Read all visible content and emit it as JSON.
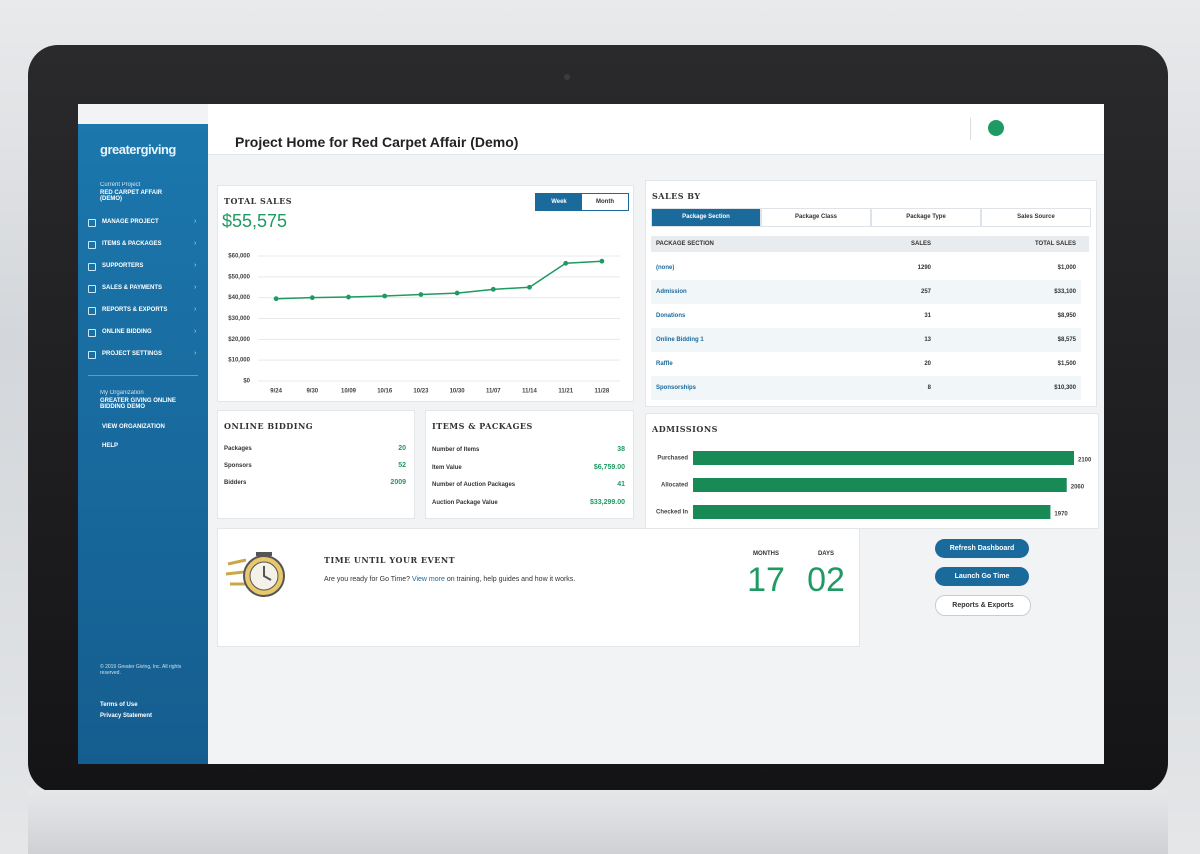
{
  "app": {
    "logo": "greatergiving",
    "title": "Project Home for Red Carpet Affair (Demo)"
  },
  "sidebar": {
    "current_label": "Current Project",
    "current_project": "RED CARPET AFFAIR (DEMO)",
    "menu": [
      "MANAGE PROJECT",
      "ITEMS & PACKAGES",
      "SUPPORTERS",
      "SALES & PAYMENTS",
      "REPORTS & EXPORTS",
      "ONLINE BIDDING",
      "PROJECT SETTINGS"
    ],
    "org_label": "My Organization",
    "org_name": "GREATER GIVING ONLINE BIDDING DEMO",
    "org_menu": [
      "VIEW ORGANIZATION",
      "HELP"
    ],
    "footer": "© 2019 Greater Giving, Inc. All rights reserved.",
    "links": [
      "Terms of Use",
      "Privacy Statement"
    ]
  },
  "total_sales": {
    "title": "TOTAL SALES",
    "amount": "$55,575",
    "toggle": [
      "Week",
      "Month"
    ]
  },
  "chart_data": [
    {
      "type": "line",
      "categories": [
        "9/24",
        "9/30",
        "10/09",
        "10/16",
        "10/23",
        "10/30",
        "11/07",
        "11/14",
        "11/21",
        "11/28"
      ],
      "values": [
        39500,
        40000,
        40300,
        40800,
        41500,
        42200,
        44000,
        45000,
        56500,
        57500
      ],
      "color": "#1f9a62",
      "ylim": [
        0,
        60000
      ],
      "yticks": [
        {
          "value": 0,
          "label": "$0"
        },
        {
          "value": 10000,
          "label": "$10,000"
        },
        {
          "value": 20000,
          "label": "$20,000"
        },
        {
          "value": 30000,
          "label": "$30,000"
        },
        {
          "value": 40000,
          "label": "$40,000"
        },
        {
          "value": 50000,
          "label": "$50,000"
        },
        {
          "value": 60000,
          "label": "$60,000"
        }
      ],
      "grid": true
    },
    {
      "type": "hbar",
      "title": "ADMISSIONS",
      "categories": [
        "Purchased",
        "Allocated",
        "Checked In"
      ],
      "values": [
        2100,
        2060,
        1970
      ],
      "color": "#178a55",
      "xlim": [
        0,
        2100
      ]
    }
  ],
  "sales_by": {
    "title": "SALES BY",
    "tabs": [
      "Package Section",
      "Package Class",
      "Package Type",
      "Sales Source"
    ],
    "headers": [
      "PACKAGE SECTION",
      "SALES",
      "TOTAL SALES"
    ],
    "rows": [
      [
        "(none)",
        "1290",
        "$1,000"
      ],
      [
        "Admission",
        "257",
        "$33,100"
      ],
      [
        "Donations",
        "31",
        "$8,950"
      ],
      [
        "Online Bidding 1",
        "13",
        "$8,575"
      ],
      [
        "Raffle",
        "20",
        "$1,500"
      ],
      [
        "Sponsorships",
        "8",
        "$10,300"
      ]
    ]
  },
  "online_bidding": {
    "title": "ONLINE BIDDING",
    "rows": [
      [
        "Packages",
        "20"
      ],
      [
        "Sponsors",
        "52"
      ],
      [
        "Bidders",
        "2009"
      ]
    ]
  },
  "items_packages": {
    "title": "ITEMS & PACKAGES",
    "rows": [
      [
        "Number of Items",
        "38"
      ],
      [
        "Item Value",
        "$6,759.00"
      ],
      [
        "Number of Auction Packages",
        "41"
      ],
      [
        "Auction Package Value",
        "$33,299.00"
      ]
    ]
  },
  "event": {
    "title": "TIME UNTIL YOUR EVENT",
    "text_before": "Are you ready for Go Time? ",
    "link": "View more",
    "text_after": " on training, help guides and how it works.",
    "months_label": "MONTHS",
    "months": "17",
    "days_label": "DAYS",
    "days": "02"
  },
  "buttons": [
    "Refresh Dashboard",
    "Launch Go Time",
    "Reports & Exports"
  ]
}
